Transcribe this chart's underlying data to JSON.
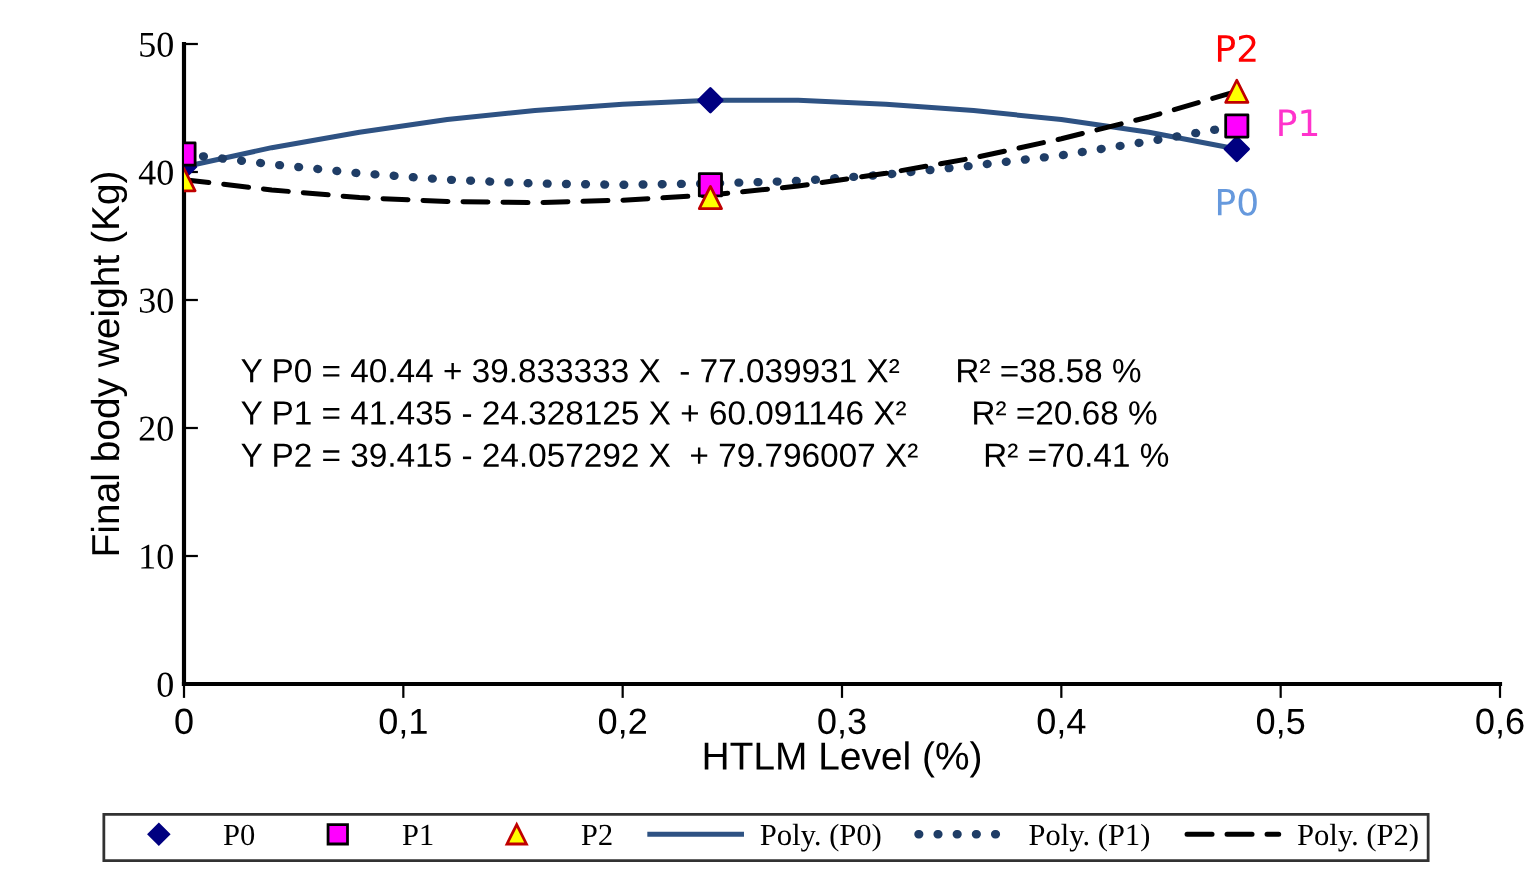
{
  "chart_data": {
    "type": "scatter",
    "xlabel": "HTLM Level (%)",
    "ylabel": "Final body weight (Kg)",
    "xlim": [
      0,
      0.6
    ],
    "xticks": [
      0,
      {
        "value": 0.1,
        "label": "0,1"
      },
      {
        "value": 0.2,
        "label": "0,2"
      },
      {
        "value": 0.3,
        "label": "0,3"
      },
      {
        "value": 0.4,
        "label": "0,4"
      },
      {
        "value": 0.5,
        "label": "0,5"
      },
      {
        "value": 0.6,
        "label": "0,6"
      }
    ],
    "ylim": [
      0,
      50
    ],
    "yticks": [
      0,
      10,
      20,
      30,
      40,
      50
    ],
    "grid": false,
    "legend": "bottom",
    "series": [
      {
        "name": "P0",
        "marker": "diamond",
        "color": "#000080",
        "x": [
          0,
          0.24,
          0.48
        ],
        "values": [
          40.4,
          45.6,
          41.8
        ]
      },
      {
        "name": "P1",
        "marker": "square",
        "color": "#ff00ff",
        "x": [
          0,
          0.24,
          0.48
        ],
        "values": [
          41.4,
          39.0,
          43.6
        ]
      },
      {
        "name": "P2",
        "marker": "triangle",
        "color": "#ffff00",
        "x": [
          0,
          0.24,
          0.48
        ],
        "values": [
          39.4,
          38.0,
          46.3
        ]
      },
      {
        "name": "Poly. (P0)",
        "type": "line",
        "line_style": "solid",
        "color": "#2e5283",
        "x": [
          0,
          0.04,
          0.08,
          0.12,
          0.16,
          0.2,
          0.24,
          0.28,
          0.32,
          0.36,
          0.4,
          0.44,
          0.48
        ],
        "values": [
          40.4,
          41.9,
          43.1,
          44.1,
          44.8,
          45.3,
          45.6,
          45.6,
          45.3,
          44.8,
          44.1,
          43.1,
          41.8
        ]
      },
      {
        "name": "Poly. (P1)",
        "type": "line",
        "line_style": "dotted",
        "color": "#1f3d66",
        "x": [
          0,
          0.04,
          0.08,
          0.12,
          0.16,
          0.2,
          0.24,
          0.28,
          0.32,
          0.36,
          0.4,
          0.44,
          0.48
        ],
        "values": [
          41.4,
          40.6,
          39.9,
          39.4,
          39.1,
          39.0,
          39.1,
          39.3,
          39.8,
          40.5,
          41.3,
          42.4,
          43.6
        ]
      },
      {
        "name": "Poly. (P2)",
        "type": "line",
        "line_style": "dashed",
        "color": "#000000",
        "x": [
          0,
          0.04,
          0.08,
          0.12,
          0.16,
          0.2,
          0.24,
          0.28,
          0.32,
          0.36,
          0.4,
          0.44,
          0.48
        ],
        "values": [
          39.4,
          38.6,
          38.0,
          37.7,
          37.6,
          37.8,
          38.2,
          38.9,
          39.9,
          41.1,
          42.6,
          44.3,
          46.3
        ]
      }
    ],
    "annotations": [
      "Y P0 = 40.44 + 39.833333 X  - 77.039931 X²      R² =38.58 %",
      "Y P1 = 41.435 - 24.328125 X + 60.091146 X²       R² =20.68 %",
      "Y P2 = 39.415 - 24.057292 X  + 79.796007 X²       R² =70.41 %",
      "P2",
      "P1",
      "P0"
    ]
  }
}
